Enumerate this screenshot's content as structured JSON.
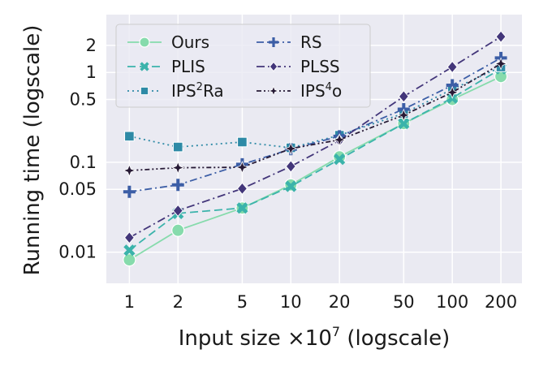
{
  "chart_data": {
    "type": "line",
    "x": [
      1,
      2,
      5,
      10,
      20,
      50,
      100,
      200
    ],
    "xscale": "log",
    "yscale": "log",
    "xlim": [
      0.72,
      270
    ],
    "ylim": [
      0.0045,
      4.4
    ],
    "x_ticks": [
      {
        "value": 1,
        "label": "1"
      },
      {
        "value": 2,
        "label": "2"
      },
      {
        "value": 5,
        "label": "5"
      },
      {
        "value": 10,
        "label": "10"
      },
      {
        "value": 20,
        "label": "20"
      },
      {
        "value": 50,
        "label": "50"
      },
      {
        "value": 100,
        "label": "100"
      },
      {
        "value": 200,
        "label": "200"
      }
    ],
    "y_ticks": [
      {
        "value": 0.01,
        "label": "0.01"
      },
      {
        "value": 0.05,
        "label": "0.05"
      },
      {
        "value": 0.1,
        "label": "0.1"
      },
      {
        "value": 0.5,
        "label": "0.5"
      },
      {
        "value": 1,
        "label": "1"
      },
      {
        "value": 2,
        "label": "2"
      }
    ],
    "xlabel": {
      "main": "Input size ×10",
      "sup": "7",
      "tail": " (logscale)"
    },
    "ylabel": "Running time (logscale)",
    "grid": true,
    "legend_position": "top-left",
    "series": [
      {
        "name": "Ours",
        "color": "#86dbac",
        "dash": "",
        "marker": "circle",
        "values": [
          0.0082,
          0.0175,
          0.031,
          0.056,
          0.115,
          0.27,
          0.5,
          0.9
        ]
      },
      {
        "name": "PLIS",
        "color": "#3bb3ab",
        "dash": "10,5",
        "marker": "x",
        "values": [
          0.0105,
          0.027,
          0.031,
          0.054,
          0.108,
          0.27,
          0.52,
          1.1
        ]
      },
      {
        "name": "IPS",
        "sup": "2",
        "tail": "Ra",
        "color": "#2e8aa6",
        "dash": "2,4",
        "marker": "square",
        "values": [
          0.195,
          0.148,
          0.168,
          0.145,
          0.2,
          0.35,
          0.65,
          1.15
        ]
      },
      {
        "name": "RS",
        "color": "#3c5ea6",
        "dash": "9,4,2,4",
        "marker": "plus",
        "values": [
          0.047,
          0.056,
          0.095,
          0.14,
          0.195,
          0.39,
          0.72,
          1.45
        ]
      },
      {
        "name": "PLSS",
        "color": "#43367a",
        "dash": "10,4,2,4",
        "marker": "diamond",
        "values": [
          0.0145,
          0.029,
          0.051,
          0.09,
          0.175,
          0.54,
          1.15,
          2.5
        ]
      },
      {
        "name": "IPS",
        "sup": "4",
        "tail": "o",
        "color": "#271a35",
        "dash": "6,3,2,3,2,3",
        "marker": "star4",
        "values": [
          0.081,
          0.087,
          0.088,
          0.142,
          0.178,
          0.335,
          0.6,
          1.25
        ]
      }
    ]
  }
}
